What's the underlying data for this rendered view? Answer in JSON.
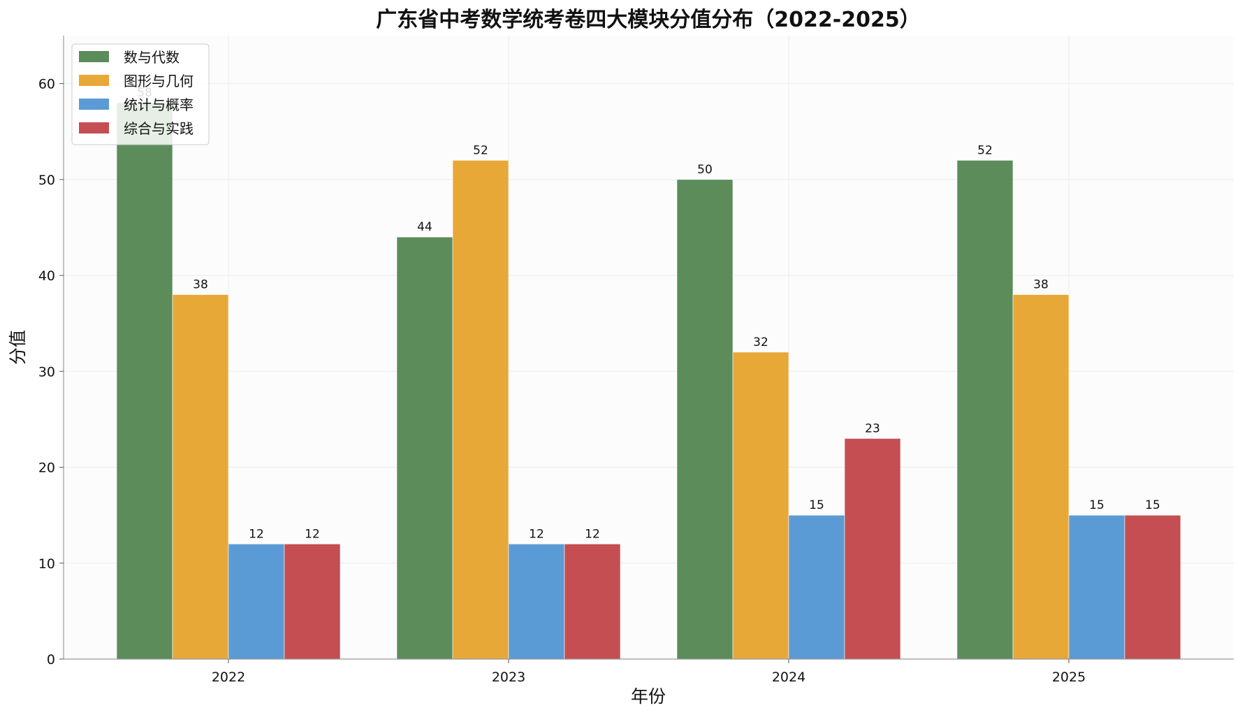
{
  "chart_data": {
    "type": "bar",
    "title": "广东省中考数学统考卷四大模块分值分布（2022-2025）",
    "xlabel": "年份",
    "ylabel": "分值",
    "categories": [
      "2022",
      "2023",
      "2024",
      "2025"
    ],
    "ylim": [
      0,
      65
    ],
    "yticks": [
      0,
      10,
      20,
      30,
      40,
      50,
      60
    ],
    "grid": true,
    "legend_position": "top-left",
    "series": [
      {
        "name": "数与代数",
        "color": "#5b8c5a",
        "values": [
          58,
          44,
          50,
          52
        ]
      },
      {
        "name": "图形与几何",
        "color": "#e8a838",
        "values": [
          38,
          52,
          32,
          38
        ]
      },
      {
        "name": "统计与概率",
        "color": "#5b9bd5",
        "values": [
          12,
          12,
          15,
          15
        ]
      },
      {
        "name": "综合与实践",
        "color": "#c44e52",
        "values": [
          12,
          12,
          23,
          15
        ]
      }
    ]
  }
}
